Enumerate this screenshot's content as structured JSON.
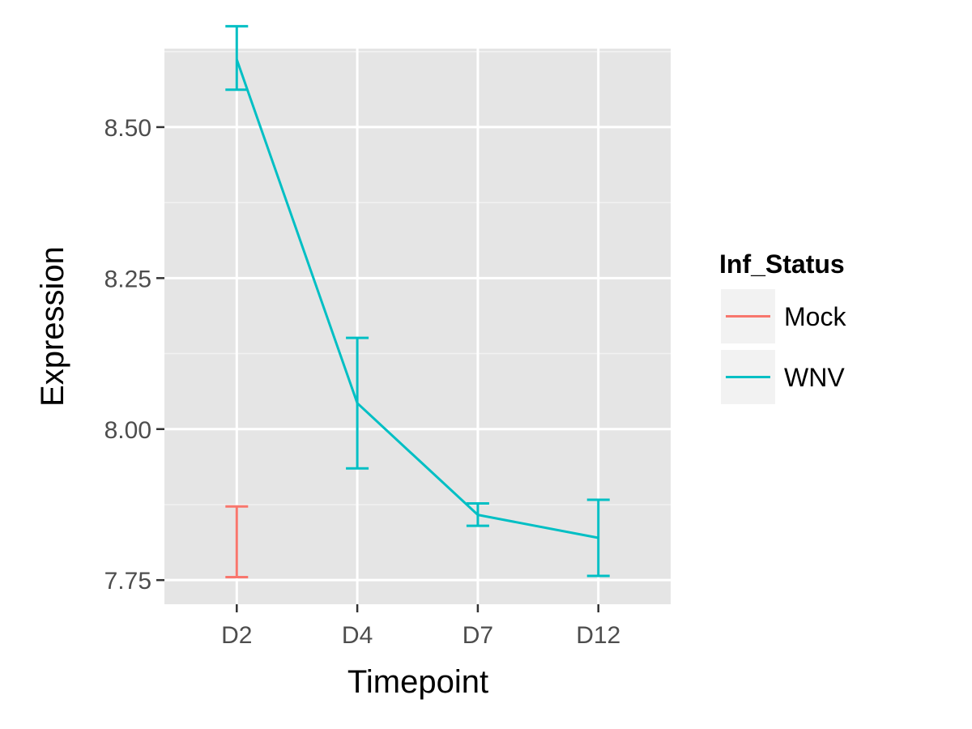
{
  "chart_data": {
    "type": "line",
    "title": "",
    "xlabel": "Timepoint",
    "ylabel": "Expression",
    "categories": [
      "D2",
      "D4",
      "D7",
      "D12"
    ],
    "ylim": [
      7.71,
      8.63
    ],
    "yticks": [
      7.75,
      8.0,
      8.25,
      8.5
    ],
    "ytick_labels": [
      "7.75",
      "8.00",
      "8.25",
      "8.50"
    ],
    "grid": true,
    "legend": {
      "title": "Inf_Status",
      "position": "right"
    },
    "series": [
      {
        "name": "Mock",
        "color": "#F8766D",
        "values": [
          7.815,
          null,
          null,
          null
        ],
        "error_low": [
          7.755,
          null,
          null,
          null
        ],
        "error_high": [
          7.872,
          null,
          null,
          null
        ],
        "show_line": false
      },
      {
        "name": "WNV",
        "color": "#00BFC4",
        "values": [
          8.612,
          8.043,
          7.858,
          7.82
        ],
        "error_low": [
          8.562,
          7.935,
          7.84,
          7.757
        ],
        "error_high": [
          8.667,
          8.151,
          7.877,
          7.883
        ],
        "show_line": true
      }
    ]
  }
}
